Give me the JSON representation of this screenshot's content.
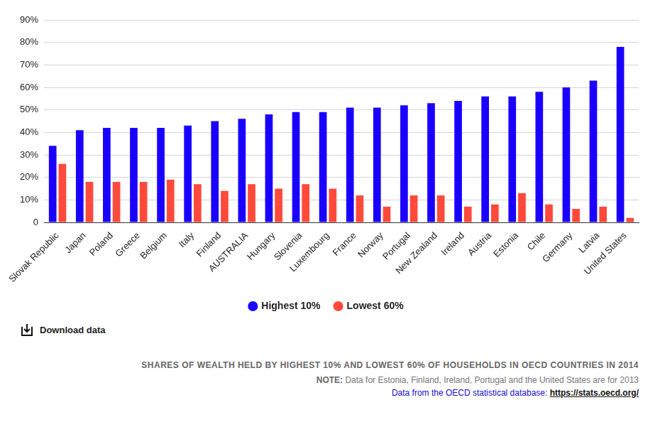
{
  "chart_data": {
    "type": "bar",
    "title": "SHARES OF WEALTH HELD BY HIGHEST 10% AND LOWEST 60% OF HOUSEHOLDS IN OECD COUNTRIES IN 2014",
    "note": {
      "label": "NOTE:",
      "text": "Data for Estonia, Finland, Ireland, Portugal and the United States are for 2013"
    },
    "source": {
      "text": "Data from the OECD statistical database:",
      "url": "https://stats.oecd.org/"
    },
    "download_label": "Download data",
    "categories": [
      "Slovak Republic",
      "Japan",
      "Poland",
      "Greece",
      "Belgium",
      "Italy",
      "Finland",
      "AUSTRALIA",
      "Hungary",
      "Slovenia",
      "Luxembourg",
      "France",
      "Norway",
      "Portugal",
      "New Zealand",
      "Ireland",
      "Austria",
      "Estonia",
      "Chile",
      "Germany",
      "Latvia",
      "United States"
    ],
    "series": [
      {
        "name": "Highest 10%",
        "color": "#1a00ff",
        "values": [
          34,
          41,
          42,
          42,
          42,
          43,
          45,
          46,
          48,
          49,
          49,
          51,
          51,
          52,
          53,
          54,
          56,
          56,
          58,
          60,
          63,
          78
        ]
      },
      {
        "name": "Lowest 60%",
        "color": "#ff4a3b",
        "values": [
          26,
          18,
          18,
          18,
          19,
          17,
          14,
          17,
          15,
          17,
          15,
          12,
          7,
          12,
          12,
          7,
          8,
          13,
          8,
          6,
          7,
          2
        ]
      }
    ],
    "ylim": [
      0,
      90
    ],
    "yticks": [
      0,
      {
        "value": 10,
        "label": "10%"
      },
      {
        "value": 20,
        "label": "20%"
      },
      {
        "value": 30,
        "label": "30%"
      },
      {
        "value": 40,
        "label": "40%"
      },
      {
        "value": 50,
        "label": "50%"
      },
      {
        "value": 60,
        "label": "60%"
      },
      {
        "value": 70,
        "label": "70%"
      },
      {
        "value": 80,
        "label": "80%"
      },
      {
        "value": 90,
        "label": "90%"
      }
    ],
    "grid": true,
    "legend": "bottom"
  }
}
